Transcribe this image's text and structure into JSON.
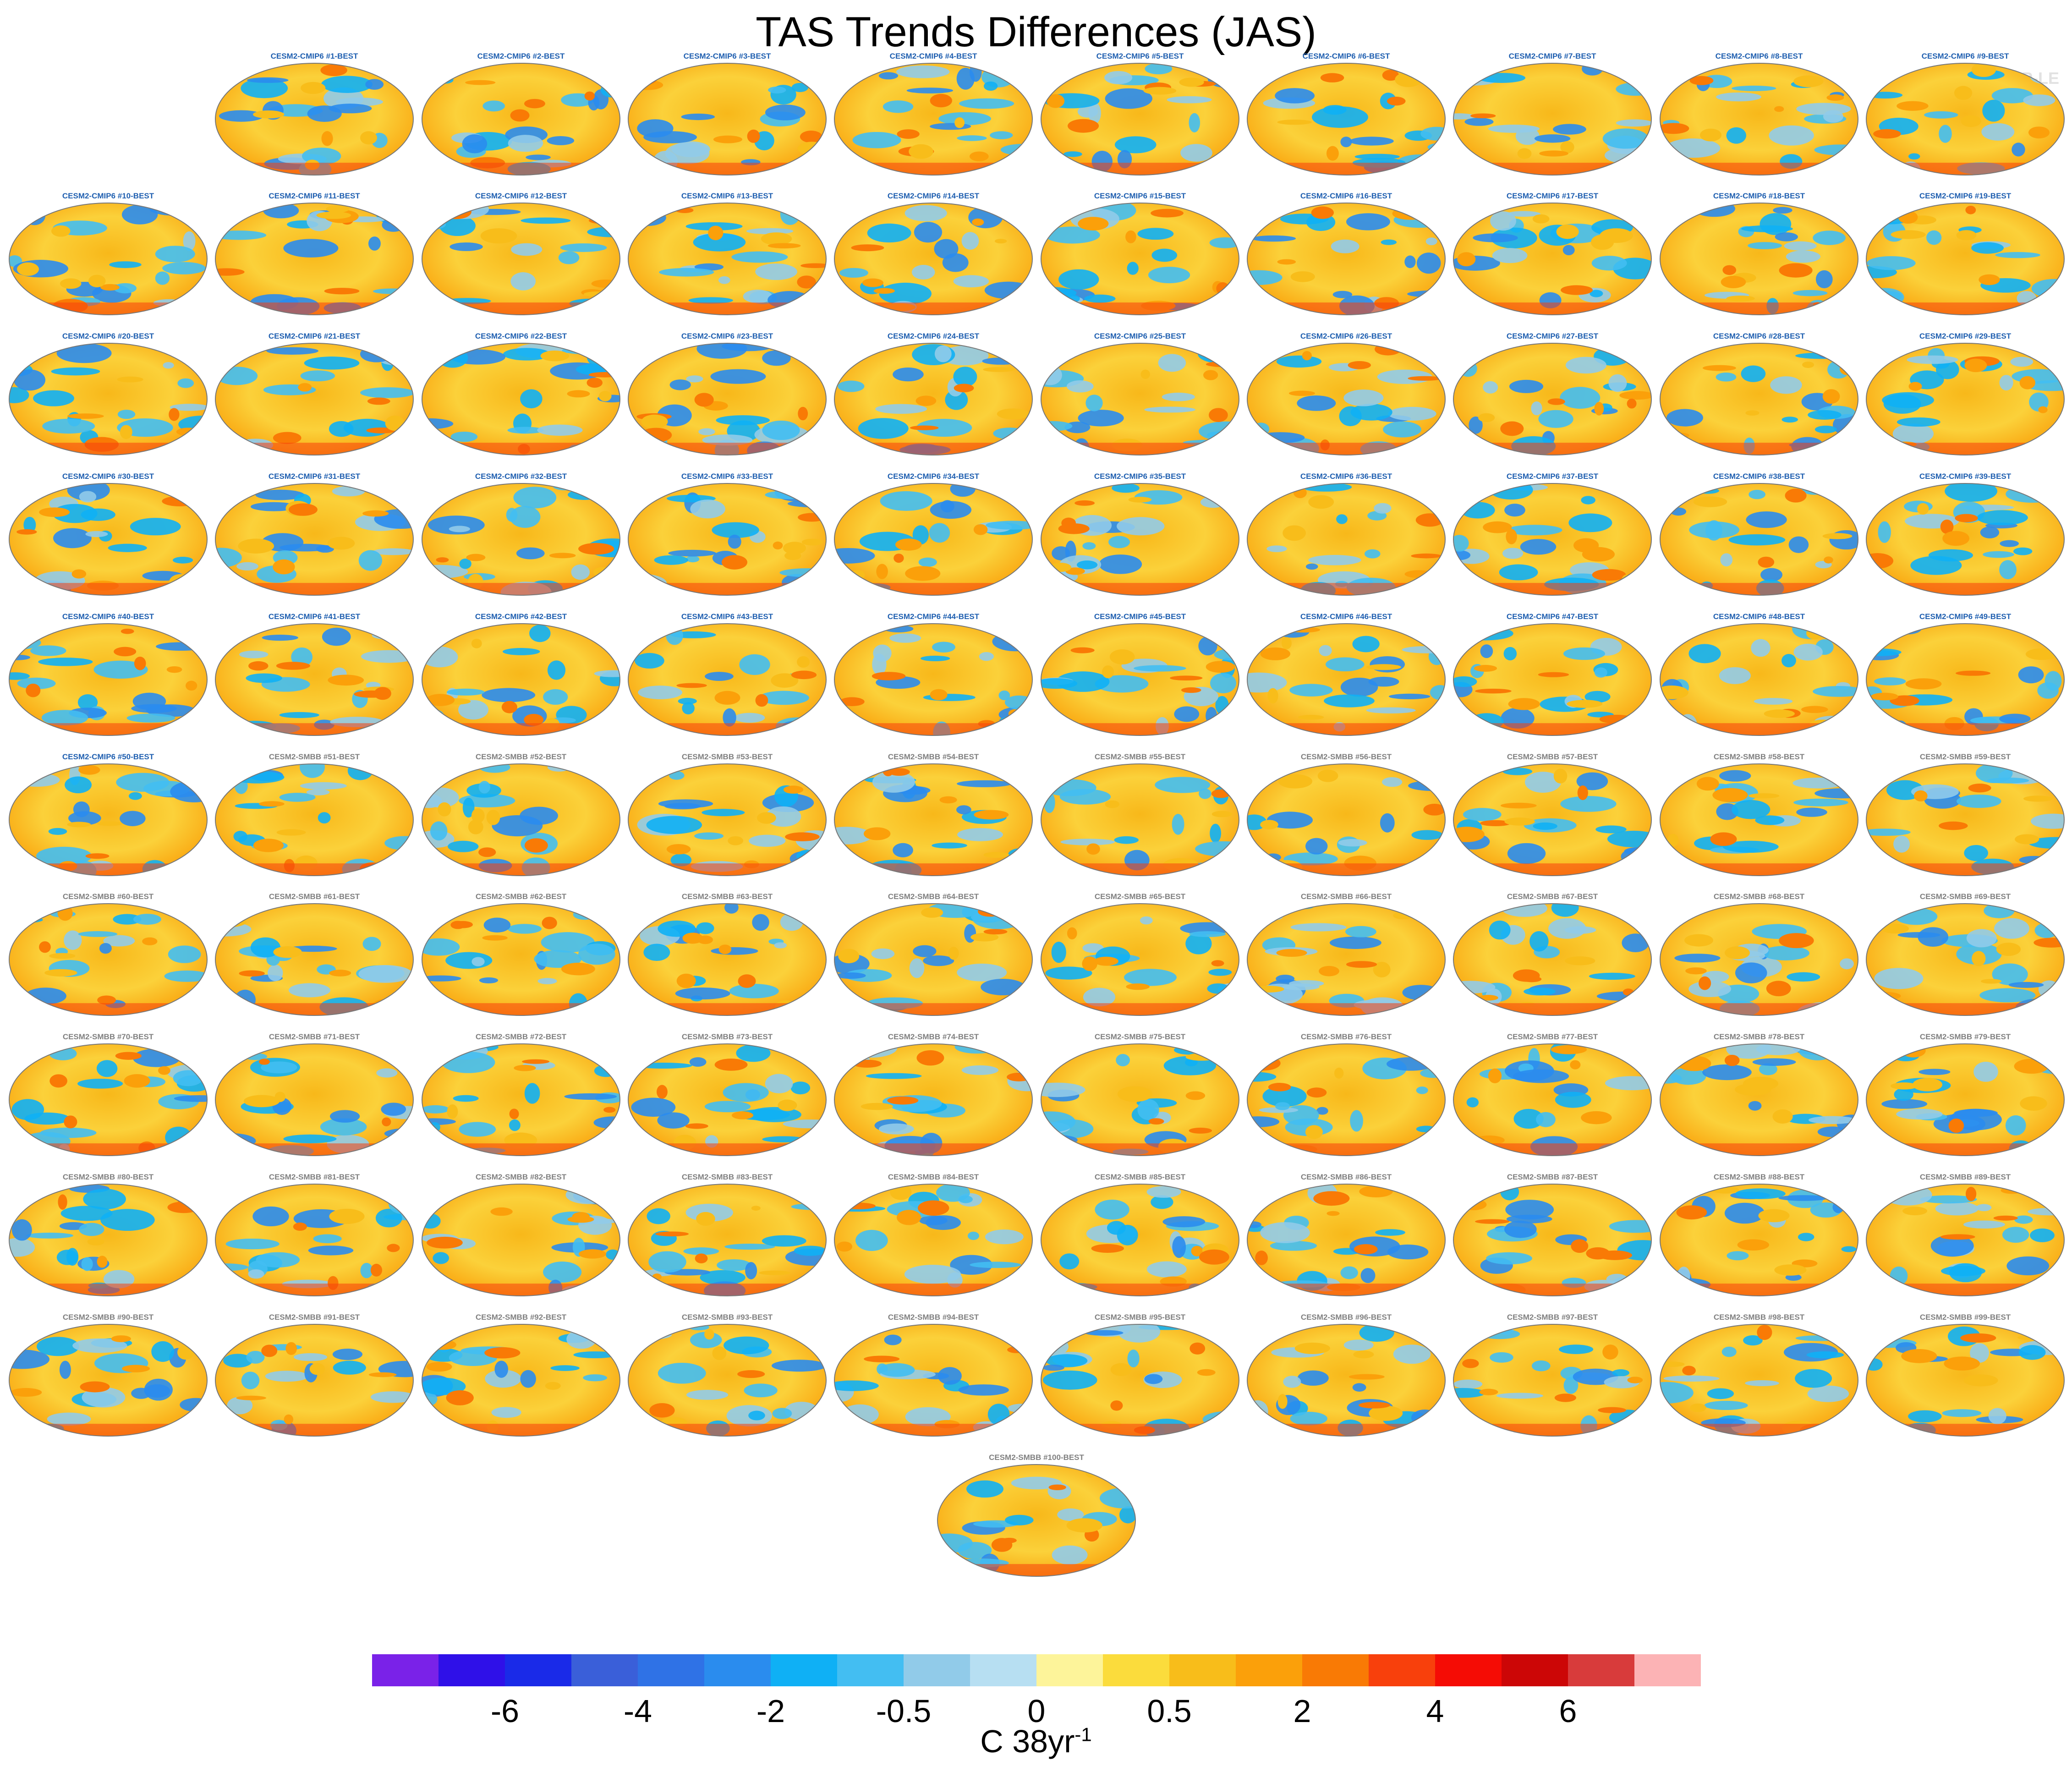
{
  "title": "TAS Trends Differences (JAS)",
  "copyright": "© CVDP-LE",
  "chart_data": {
    "type": "map-panels",
    "title": "TAS Trends Differences (JAS)",
    "projection": "Robinson",
    "panel_title_colors": {
      "CESM2-CMIP6": "#1f5fb0",
      "CESM2-SMBB": "#808080"
    },
    "panels": [
      "CESM2-CMIP6 #1-BEST",
      "CESM2-CMIP6 #2-BEST",
      "CESM2-CMIP6 #3-BEST",
      "CESM2-CMIP6 #4-BEST",
      "CESM2-CMIP6 #5-BEST",
      "CESM2-CMIP6 #6-BEST",
      "CESM2-CMIP6 #7-BEST",
      "CESM2-CMIP6 #8-BEST",
      "CESM2-CMIP6 #9-BEST",
      "CESM2-CMIP6 #10-BEST",
      "CESM2-CMIP6 #11-BEST",
      "CESM2-CMIP6 #12-BEST",
      "CESM2-CMIP6 #13-BEST",
      "CESM2-CMIP6 #14-BEST",
      "CESM2-CMIP6 #15-BEST",
      "CESM2-CMIP6 #16-BEST",
      "CESM2-CMIP6 #17-BEST",
      "CESM2-CMIP6 #18-BEST",
      "CESM2-CMIP6 #19-BEST",
      "CESM2-CMIP6 #20-BEST",
      "CESM2-CMIP6 #21-BEST",
      "CESM2-CMIP6 #22-BEST",
      "CESM2-CMIP6 #23-BEST",
      "CESM2-CMIP6 #24-BEST",
      "CESM2-CMIP6 #25-BEST",
      "CESM2-CMIP6 #26-BEST",
      "CESM2-CMIP6 #27-BEST",
      "CESM2-CMIP6 #28-BEST",
      "CESM2-CMIP6 #29-BEST",
      "CESM2-CMIP6 #30-BEST",
      "CESM2-CMIP6 #31-BEST",
      "CESM2-CMIP6 #32-BEST",
      "CESM2-CMIP6 #33-BEST",
      "CESM2-CMIP6 #34-BEST",
      "CESM2-CMIP6 #35-BEST",
      "CESM2-CMIP6 #36-BEST",
      "CESM2-CMIP6 #37-BEST",
      "CESM2-CMIP6 #38-BEST",
      "CESM2-CMIP6 #39-BEST",
      "CESM2-CMIP6 #40-BEST",
      "CESM2-CMIP6 #41-BEST",
      "CESM2-CMIP6 #42-BEST",
      "CESM2-CMIP6 #43-BEST",
      "CESM2-CMIP6 #44-BEST",
      "CESM2-CMIP6 #45-BEST",
      "CESM2-CMIP6 #46-BEST",
      "CESM2-CMIP6 #47-BEST",
      "CESM2-CMIP6 #48-BEST",
      "CESM2-CMIP6 #49-BEST",
      "CESM2-CMIP6 #50-BEST",
      "CESM2-SMBB #51-BEST",
      "CESM2-SMBB #52-BEST",
      "CESM2-SMBB #53-BEST",
      "CESM2-SMBB #54-BEST",
      "CESM2-SMBB #55-BEST",
      "CESM2-SMBB #56-BEST",
      "CESM2-SMBB #57-BEST",
      "CESM2-SMBB #58-BEST",
      "CESM2-SMBB #59-BEST",
      "CESM2-SMBB #60-BEST",
      "CESM2-SMBB #61-BEST",
      "CESM2-SMBB #62-BEST",
      "CESM2-SMBB #63-BEST",
      "CESM2-SMBB #64-BEST",
      "CESM2-SMBB #65-BEST",
      "CESM2-SMBB #66-BEST",
      "CESM2-SMBB #67-BEST",
      "CESM2-SMBB #68-BEST",
      "CESM2-SMBB #69-BEST",
      "CESM2-SMBB #70-BEST",
      "CESM2-SMBB #71-BEST",
      "CESM2-SMBB #72-BEST",
      "CESM2-SMBB #73-BEST",
      "CESM2-SMBB #74-BEST",
      "CESM2-SMBB #75-BEST",
      "CESM2-SMBB #76-BEST",
      "CESM2-SMBB #77-BEST",
      "CESM2-SMBB #78-BEST",
      "CESM2-SMBB #79-BEST",
      "CESM2-SMBB #80-BEST",
      "CESM2-SMBB #81-BEST",
      "CESM2-SMBB #82-BEST",
      "CESM2-SMBB #83-BEST",
      "CESM2-SMBB #84-BEST",
      "CESM2-SMBB #85-BEST",
      "CESM2-SMBB #86-BEST",
      "CESM2-SMBB #87-BEST",
      "CESM2-SMBB #88-BEST",
      "CESM2-SMBB #89-BEST",
      "CESM2-SMBB #90-BEST",
      "CESM2-SMBB #91-BEST",
      "CESM2-SMBB #92-BEST",
      "CESM2-SMBB #93-BEST",
      "CESM2-SMBB #94-BEST",
      "CESM2-SMBB #95-BEST",
      "CESM2-SMBB #96-BEST",
      "CESM2-SMBB #97-BEST",
      "CESM2-SMBB #98-BEST",
      "CESM2-SMBB #99-BEST",
      "CESM2-SMBB #100-BEST"
    ],
    "colorbar": {
      "colors": [
        "#7a22e8",
        "#2f10e8",
        "#1a2ae8",
        "#3a5fd9",
        "#2f72e6",
        "#2a8cee",
        "#0fb0f5",
        "#43bef2",
        "#91cbe9",
        "#b7dff2",
        "#fdf49a",
        "#fbdc3c",
        "#f8bd1a",
        "#fba00a",
        "#f97a05",
        "#f8400c",
        "#f50c05",
        "#cc0606",
        "#d83b3b",
        "#fcb3b5"
      ],
      "tick_labels": [
        "-6",
        "-4",
        "-2",
        "-0.5",
        "0",
        "0.5",
        "2",
        "4",
        "6"
      ],
      "tick_boundaries": [
        2,
        4,
        6,
        8,
        10,
        12,
        14,
        16,
        18
      ],
      "units_base": "C 38yr",
      "units_exp": "-1"
    }
  }
}
